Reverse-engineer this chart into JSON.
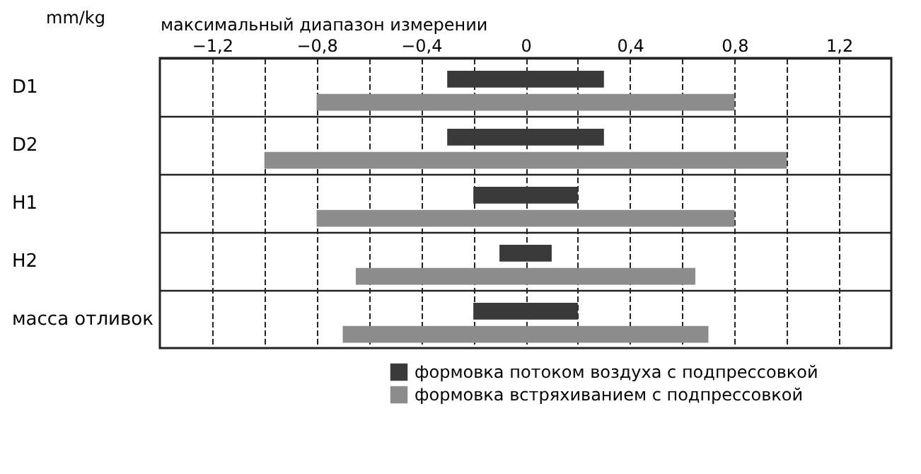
{
  "chart_data": {
    "type": "bar",
    "orientation": "horizontal",
    "xlabel": "максимальный диапазон измерении",
    "ylabel": "mm/kg",
    "categories": [
      "D1",
      "D2",
      "H1",
      "H2",
      "масса отливок"
    ],
    "series": [
      {
        "name": "формовка потоком воздуха с подпрессовкой",
        "color": "#3a3a3a",
        "base": [
          -0.3,
          -0.3,
          -0.2,
          -0.1,
          -0.2
        ],
        "values": [
          0.6,
          0.6,
          0.4,
          0.2,
          0.4
        ]
      },
      {
        "name": "формовка встряхиванием с подпрессовкой",
        "color": "#8c8c8c",
        "base": [
          -0.8,
          -1.0,
          -0.8,
          -0.65,
          -0.7
        ],
        "values": [
          1.6,
          2.0,
          1.6,
          1.3,
          1.4
        ]
      }
    ],
    "xlim": [
      -1.4,
      1.4
    ],
    "xticks": [
      {
        "value": -1.2,
        "label": "−1,2"
      },
      {
        "value": -1.0,
        "label": null
      },
      {
        "value": -0.8,
        "label": "−0,8"
      },
      {
        "value": -0.6,
        "label": null
      },
      {
        "value": -0.4,
        "label": "−0,4"
      },
      {
        "value": -0.2,
        "label": null
      },
      0,
      {
        "value": 0.2,
        "label": null
      },
      {
        "value": 0.4,
        "label": "0,4"
      },
      {
        "value": 0.6,
        "label": null
      },
      {
        "value": 0.8,
        "label": "0,8"
      },
      {
        "value": 1.0,
        "label": null
      },
      {
        "value": 1.2,
        "label": "1,2"
      }
    ],
    "grid": true,
    "legend": "bottom right"
  }
}
